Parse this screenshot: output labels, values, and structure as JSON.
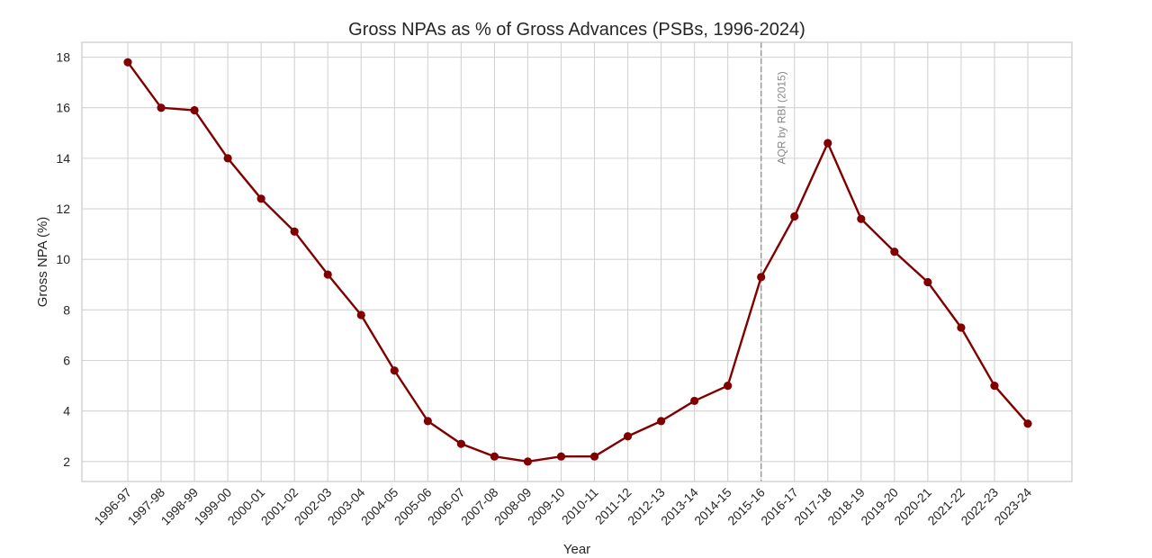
{
  "chart_data": {
    "type": "line",
    "title": "Gross NPAs as % of Gross Advances (PSBs, 1996-2024)",
    "xlabel": "Year",
    "ylabel": "Gross NPA (%)",
    "categories": [
      "1996-97",
      "1997-98",
      "1998-99",
      "1999-00",
      "2000-01",
      "2001-02",
      "2002-03",
      "2003-04",
      "2004-05",
      "2005-06",
      "2006-07",
      "2007-08",
      "2008-09",
      "2009-10",
      "2010-11",
      "2011-12",
      "2012-13",
      "2013-14",
      "2014-15",
      "2015-16",
      "2016-17",
      "2017-18",
      "2018-19",
      "2019-20",
      "2020-21",
      "2021-22",
      "2022-23",
      "2023-24"
    ],
    "series": [
      {
        "name": "Gross NPA (%)",
        "values": [
          17.8,
          16.0,
          15.9,
          14.0,
          12.4,
          11.1,
          9.4,
          7.8,
          5.6,
          3.6,
          2.7,
          2.2,
          2.0,
          2.2,
          2.2,
          3.0,
          3.6,
          4.4,
          5.0,
          9.3,
          11.7,
          14.6,
          11.6,
          10.3,
          9.1,
          7.3,
          5.0,
          3.5
        ],
        "color": "#800000"
      }
    ],
    "yticks": [
      2,
      4,
      6,
      8,
      10,
      12,
      14,
      16,
      18
    ],
    "ylim": [
      1.21,
      18.59
    ],
    "grid": true,
    "annotations": [
      {
        "text": "AQR by RBI (2015)",
        "category": "2015-16",
        "y": 15.6,
        "style": "vertical dashed line"
      }
    ]
  },
  "colors": {
    "grid": "#d3d3d3",
    "axes_frame": "#cccccc",
    "annotation_line": "#999999",
    "text": "#262626"
  }
}
